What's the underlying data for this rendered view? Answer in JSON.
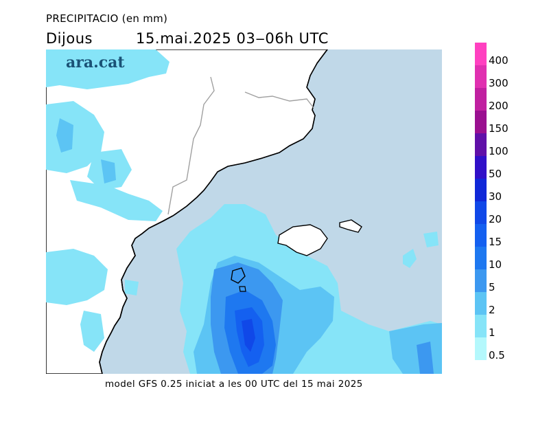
{
  "header": {
    "title": "PRECIPITACIO (en mm)",
    "day": "Dijous",
    "period": "15.mai.2025 03‒06h UTC"
  },
  "logo": {
    "text": "ara.cat"
  },
  "footer": {
    "text": "model GFS 0.25 iniciat a les 00 UTC del 15 mai 2025"
  },
  "legend": {
    "units": "mm",
    "steps": [
      {
        "label": "400",
        "color": "#ff40c0"
      },
      {
        "label": "300",
        "color": "#e030b0"
      },
      {
        "label": "200",
        "color": "#c020a0"
      },
      {
        "label": "150",
        "color": "#9a1090"
      },
      {
        "label": "100",
        "color": "#6010a8"
      },
      {
        "label": "50",
        "color": "#3010c8"
      },
      {
        "label": "30",
        "color": "#1028d8"
      },
      {
        "label": "20",
        "color": "#1048e8"
      },
      {
        "label": "15",
        "color": "#1460f0"
      },
      {
        "label": "10",
        "color": "#1e78f0"
      },
      {
        "label": "5",
        "color": "#3c98f0"
      },
      {
        "label": "2",
        "color": "#5cc4f4"
      },
      {
        "label": "1",
        "color": "#86e4f8"
      },
      {
        "label": "0.5",
        "color": "#b4f8fc"
      }
    ]
  },
  "map": {
    "sea_color": "#c0d8e8",
    "land_color": "#ffffff",
    "coast_color": "#000000",
    "border_color": "#a0a0a0"
  }
}
